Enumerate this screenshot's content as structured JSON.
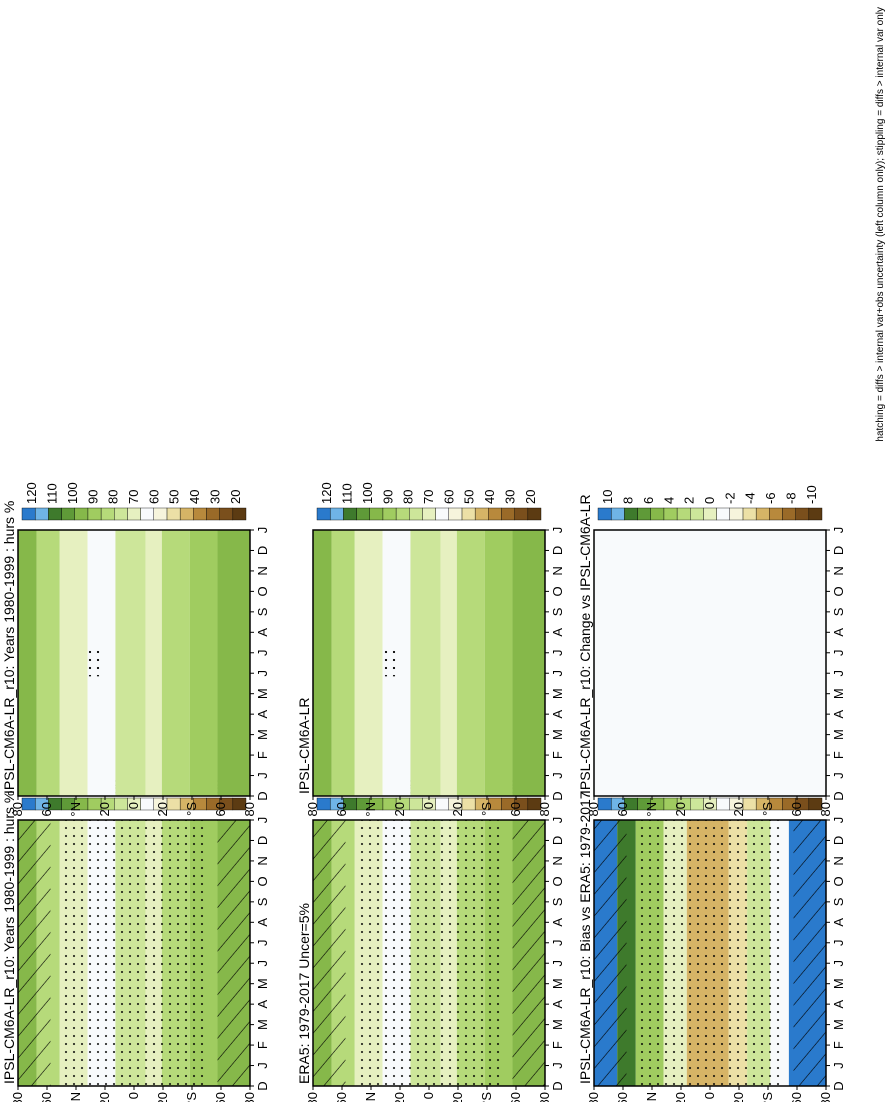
{
  "footnote": "hatching = diffs > internal var+obs uncertainty (left column only); stippling = diffs > internal var only",
  "colors": {
    "abs": [
      "#5c3b12",
      "#7a4f1c",
      "#9a6a28",
      "#b8893c",
      "#d6b466",
      "#ece0a6",
      "#f6f4dc",
      "#f8fafc",
      "#e6f0c0",
      "#cde69a",
      "#b6da7a",
      "#a0cc60",
      "#86b84a",
      "#5f9a38",
      "#3e7a2c",
      "#6fb4e6",
      "#2a7acc"
    ],
    "diff": [
      "#5c3b12",
      "#7a4f1c",
      "#9a6a28",
      "#b8893c",
      "#d6b466",
      "#ece0a6",
      "#f6f4dc",
      "#f8fafc",
      "#e6f0c0",
      "#cde69a",
      "#b6da7a",
      "#a0cc60",
      "#86b84a",
      "#5f9a38",
      "#3e7a2c",
      "#6fb4e6",
      "#2a7acc"
    ]
  },
  "colorbars": {
    "abs": [
      "20",
      "30",
      "40",
      "50",
      "60",
      "70",
      "80",
      "90",
      "100",
      "110",
      "120"
    ],
    "diff": [
      "-10",
      "-8",
      "-6",
      "-4",
      "-2",
      "0",
      "2",
      "4",
      "6",
      "8",
      "10"
    ]
  },
  "month_ticks": [
    "D",
    "J",
    "F",
    "M",
    "A",
    "M",
    "J",
    "J",
    "A",
    "S",
    "O",
    "N",
    "D",
    "J"
  ],
  "lat_ticks": [
    "80",
    "60",
    "°S",
    "20",
    "0",
    "20",
    "°N",
    "60",
    "80"
  ],
  "chart_data": [
    {
      "type": "heatmap",
      "panel": "model",
      "title": "IPSL-CM6A-LR_r10: Years 1980-1999 : hurs %",
      "x": "month",
      "y": "latitude",
      "range": [
        20,
        120
      ],
      "marks": "hatching+stippling"
    },
    {
      "type": "heatmap",
      "panel": "obs",
      "title": "ERA5: 1979-2017 Uncer=5%",
      "x": "month",
      "y": "latitude",
      "range": [
        20,
        120
      ],
      "marks": "hatching+stippling"
    },
    {
      "type": "heatmap",
      "panel": "bias",
      "title": "IPSL-CM6A-LR_r10: Bias vs ERA5: 1979-2017",
      "x": "month",
      "y": "latitude",
      "range": [
        -10,
        10
      ],
      "marks": "hatching+stippling"
    },
    {
      "type": "heatmap",
      "panel": "model2",
      "title": "IPSL-CM6A-LR_r10: Years 1980-1999 : hurs %",
      "x": "month",
      "y": "latitude",
      "range": [
        20,
        120
      ],
      "marks": "stippling"
    },
    {
      "type": "heatmap",
      "panel": "mmm",
      "title": "IPSL-CM6A-LR",
      "x": "month",
      "y": "latitude",
      "range": [
        20,
        120
      ],
      "marks": "stippling"
    },
    {
      "type": "heatmap",
      "panel": "change",
      "title": "IPSL-CM6A-LR_r10: Change vs IPSL-CM6A-LR",
      "x": "month",
      "y": "latitude",
      "range": [
        -10,
        10
      ],
      "marks": "stippling"
    }
  ]
}
